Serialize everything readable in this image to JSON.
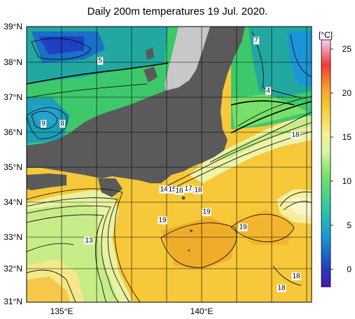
{
  "title": "Daily 200m temperatures 19 Jul. 2020.",
  "lat_labels": [
    "39°N",
    "38°N",
    "37°N",
    "36°N",
    "35°N",
    "34°N",
    "33°N",
    "32°N",
    "31°N"
  ],
  "lon_labels": [
    "135°E",
    "140°E"
  ],
  "colorbar": {
    "unit": "[°C]",
    "ticks": [
      "25",
      "20",
      "15",
      "10",
      "5",
      "0"
    ],
    "colors": [
      "#f6d0f6",
      "#ef3a3a",
      "#f7a12a",
      "#f6cd34",
      "#f9ef8c",
      "#d9f6a5",
      "#78e06a",
      "#2fc9a3",
      "#1a96d6",
      "#2040c0",
      "#4a18b0"
    ]
  },
  "land_color": "#5a5a5a",
  "no_data_color": "#c8c8c8",
  "contour_labels": [
    "7",
    "5",
    "4",
    "9",
    "8",
    "18",
    "14",
    "15",
    "16",
    "17",
    "18",
    "19",
    "19",
    "19",
    "13",
    "18",
    "18"
  ]
}
